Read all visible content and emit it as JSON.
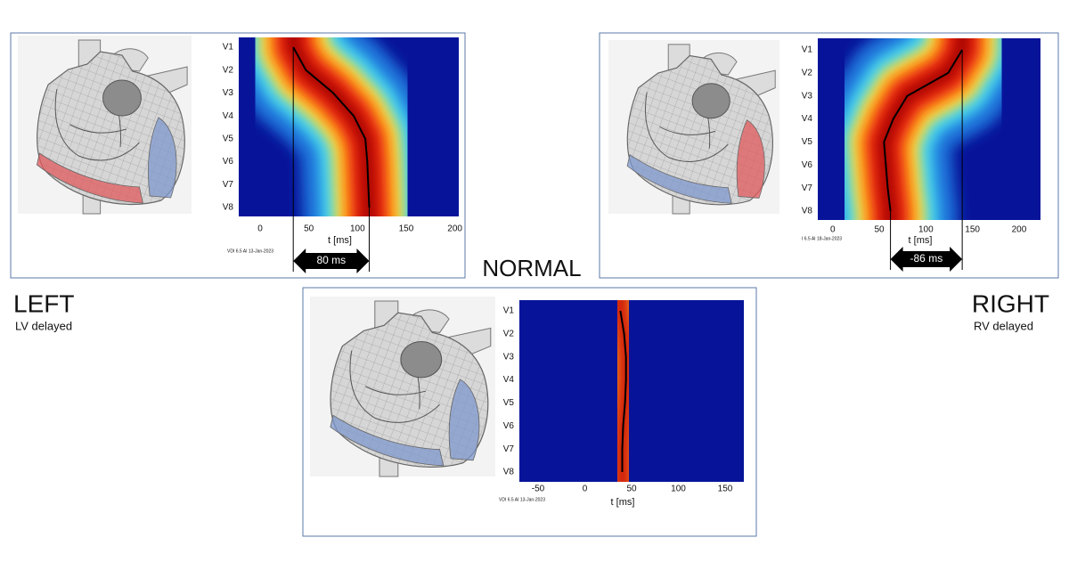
{
  "labels": {
    "normal": "NORMAL",
    "left": "LEFT",
    "left_sub": "LV delayed",
    "right": "RIGHT",
    "right_sub": "RV delayed"
  },
  "chart_data": [
    {
      "type": "activation",
      "categories": [
        "V1",
        "V2",
        "V3",
        "V4",
        "V5",
        "V6",
        "V7",
        "V8"
      ],
      "values": [
        34,
        47,
        75,
        96,
        108,
        110,
        111,
        112
      ],
      "xlim": [
        -22,
        204
      ],
      "xticks": [
        0,
        50,
        100,
        150,
        200
      ],
      "xlabel": "t  [ms]",
      "annotation": "80 ms",
      "footer": "VDI 6.5 AI 13-Jan-2023",
      "lv_color": "#e0595c",
      "rv_color": "#7d97cc"
    },
    {
      "type": "activation",
      "categories": [
        "V1",
        "V2",
        "V3",
        "V4",
        "V5",
        "V6",
        "V7",
        "V8"
      ],
      "values": [
        139,
        124,
        80,
        65,
        55,
        57,
        59,
        62
      ],
      "xlim": [
        -16,
        223
      ],
      "xticks": [
        0,
        50,
        100,
        150,
        200
      ],
      "xlabel": "t  [ms]",
      "annotation": "-86 ms",
      "footer": "I 6.5 AI 18-Jan-2023",
      "lv_color": "#7d97cc",
      "rv_color": "#e0595c"
    },
    {
      "type": "activation",
      "categories": [
        "V1",
        "V2",
        "V3",
        "V4",
        "V5",
        "V6",
        "V7",
        "V8"
      ],
      "values": [
        38,
        42,
        44,
        44,
        43,
        41,
        40,
        40
      ],
      "xlim": [
        -70,
        170
      ],
      "xticks": [
        -50,
        0,
        50,
        100,
        150
      ],
      "xlabel": "t  [ms]",
      "footer": "VDI 6.5 AI 13-Jan-2023",
      "lv_color": "#7d97cc",
      "rv_color": "#7d97cc"
    }
  ]
}
